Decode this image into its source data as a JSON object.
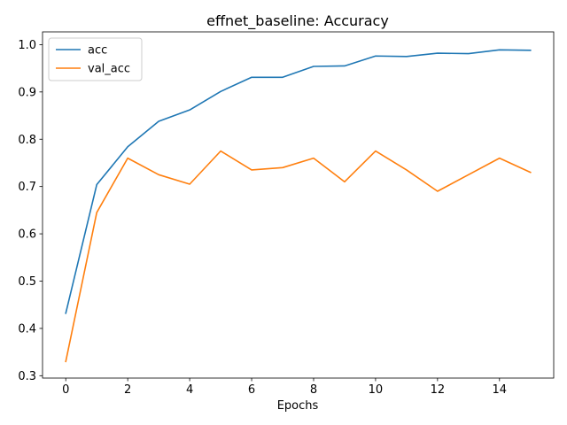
{
  "chart_data": {
    "type": "line",
    "title": "effnet_baseline: Accuracy",
    "xlabel": "Epochs",
    "ylabel": "",
    "xlim": [
      -0.75,
      15.75
    ],
    "ylim": [
      0.295,
      1.027
    ],
    "x_ticks": [
      0,
      2,
      4,
      6,
      8,
      10,
      12,
      14
    ],
    "y_ticks": [
      0.3,
      0.4,
      0.5,
      0.6,
      0.7,
      0.8,
      0.9,
      1.0
    ],
    "x_tick_labels": [
      "0",
      "2",
      "4",
      "6",
      "8",
      "10",
      "12",
      "14"
    ],
    "y_tick_labels": [
      "0.3",
      "0.4",
      "0.5",
      "0.6",
      "0.7",
      "0.8",
      "0.9",
      "1.0"
    ],
    "grid": false,
    "legend_position": "top-left",
    "x": [
      0,
      1,
      2,
      3,
      4,
      5,
      6,
      7,
      8,
      9,
      10,
      11,
      12,
      13,
      14,
      15
    ],
    "series": [
      {
        "name": "acc",
        "color": "#1f77b4",
        "values": [
          0.432,
          0.704,
          0.784,
          0.838,
          0.862,
          0.901,
          0.931,
          0.931,
          0.954,
          0.955,
          0.976,
          0.975,
          0.982,
          0.981,
          0.989,
          0.988
        ]
      },
      {
        "name": "val_acc",
        "color": "#ff7f0e",
        "values": [
          0.33,
          0.645,
          0.76,
          0.725,
          0.705,
          0.775,
          0.735,
          0.74,
          0.76,
          0.71,
          0.775,
          0.735,
          0.69,
          0.725,
          0.76,
          0.73
        ]
      }
    ]
  }
}
